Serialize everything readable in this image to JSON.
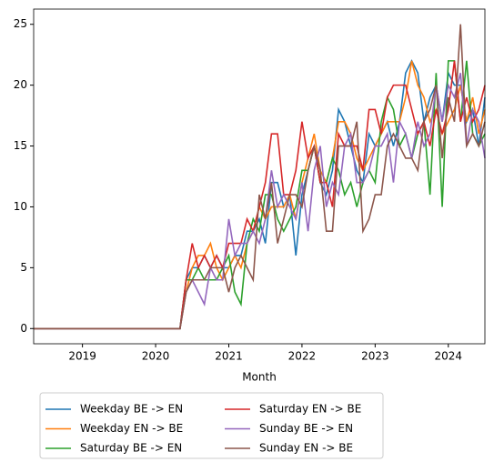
{
  "chart_data": {
    "type": "line",
    "x_label": "Month",
    "x": [
      "2018-05",
      "2018-06",
      "2018-07",
      "2018-08",
      "2018-09",
      "2018-10",
      "2018-11",
      "2018-12",
      "2019-01",
      "2019-02",
      "2019-03",
      "2019-04",
      "2019-05",
      "2019-06",
      "2019-07",
      "2019-08",
      "2019-09",
      "2019-10",
      "2019-11",
      "2019-12",
      "2020-01",
      "2020-02",
      "2020-03",
      "2020-04",
      "2020-05",
      "2020-06",
      "2020-07",
      "2020-08",
      "2020-09",
      "2020-10",
      "2020-11",
      "2020-12",
      "2021-01",
      "2021-02",
      "2021-03",
      "2021-04",
      "2021-05",
      "2021-06",
      "2021-07",
      "2021-08",
      "2021-09",
      "2021-10",
      "2021-11",
      "2021-12",
      "2022-01",
      "2022-02",
      "2022-03",
      "2022-04",
      "2022-05",
      "2022-06",
      "2022-07",
      "2022-08",
      "2022-09",
      "2022-10",
      "2022-11",
      "2022-12",
      "2023-01",
      "2023-02",
      "2023-03",
      "2023-04",
      "2023-05",
      "2023-06",
      "2023-07",
      "2023-08",
      "2023-09",
      "2023-10",
      "2023-11",
      "2023-12",
      "2024-01",
      "2024-02",
      "2024-03",
      "2024-04",
      "2024-05",
      "2024-06",
      "2024-07"
    ],
    "xlim": [
      "2018-05",
      "2024-07"
    ],
    "xticks": [
      {
        "value": "2019-01",
        "label": "2019"
      },
      {
        "value": "2020-01",
        "label": "2020"
      },
      {
        "value": "2021-01",
        "label": "2021"
      },
      {
        "value": "2022-01",
        "label": "2022"
      },
      {
        "value": "2023-01",
        "label": "2023"
      },
      {
        "value": "2024-01",
        "label": "2024"
      }
    ],
    "ylim": [
      -1.25,
      26.25
    ],
    "yticks": [
      0,
      5,
      10,
      15,
      20,
      25
    ],
    "grid": false,
    "series": [
      {
        "name": "Weekday BE -> EN",
        "color": "#1f77b4",
        "values": [
          0,
          0,
          0,
          0,
          0,
          0,
          0,
          0,
          0,
          0,
          0,
          0,
          0,
          0,
          0,
          0,
          0,
          0,
          0,
          0,
          0,
          0,
          0,
          0,
          0,
          4,
          5,
          5,
          6,
          5,
          6,
          5,
          5,
          6,
          6,
          8,
          8,
          9,
          7,
          12,
          12,
          10,
          11,
          6,
          11,
          13,
          15,
          12,
          11,
          13,
          18,
          17,
          15,
          13,
          12,
          16,
          15,
          16,
          17,
          15,
          17,
          21,
          22,
          21,
          17,
          19,
          20,
          17,
          21,
          20,
          20,
          17,
          18,
          15,
          19
        ]
      },
      {
        "name": "Weekday EN -> BE",
        "color": "#ff7f0e",
        "values": [
          0,
          0,
          0,
          0,
          0,
          0,
          0,
          0,
          0,
          0,
          0,
          0,
          0,
          0,
          0,
          0,
          0,
          0,
          0,
          0,
          0,
          0,
          0,
          0,
          0,
          3,
          5,
          6,
          6,
          7,
          5,
          4,
          5,
          6,
          5,
          7,
          8,
          10,
          9,
          10,
          10,
          10,
          11,
          9,
          12,
          14,
          16,
          13,
          12,
          14,
          17,
          17,
          16,
          14,
          13,
          14,
          15,
          16,
          17,
          17,
          17,
          19,
          22,
          20,
          19,
          17,
          18,
          16,
          17,
          18,
          20,
          17,
          19,
          16,
          18
        ]
      },
      {
        "name": "Saturday BE -> EN",
        "color": "#2ca02c",
        "values": [
          0,
          0,
          0,
          0,
          0,
          0,
          0,
          0,
          0,
          0,
          0,
          0,
          0,
          0,
          0,
          0,
          0,
          0,
          0,
          0,
          0,
          0,
          0,
          0,
          0,
          4,
          4,
          5,
          4,
          4,
          4,
          5,
          6,
          3,
          2,
          7,
          9,
          8,
          11,
          11,
          9,
          8,
          9,
          10,
          13,
          13,
          15,
          12,
          12,
          14,
          13,
          11,
          12,
          10,
          12,
          13,
          12,
          17,
          19,
          18,
          15,
          16,
          14,
          16,
          17,
          11,
          21,
          10,
          22,
          22,
          17,
          22,
          16,
          15,
          16
        ]
      },
      {
        "name": "Saturday EN -> BE",
        "color": "#d62728",
        "values": [
          0,
          0,
          0,
          0,
          0,
          0,
          0,
          0,
          0,
          0,
          0,
          0,
          0,
          0,
          0,
          0,
          0,
          0,
          0,
          0,
          0,
          0,
          0,
          0,
          0,
          4,
          7,
          5,
          6,
          5,
          6,
          5,
          7,
          7,
          7,
          9,
          8,
          10,
          12,
          16,
          16,
          11,
          11,
          13,
          17,
          14,
          15,
          12,
          12,
          10,
          16,
          15,
          15,
          15,
          13,
          18,
          18,
          16,
          19,
          20,
          20,
          20,
          18,
          16,
          17,
          15,
          18,
          16,
          18,
          22,
          17,
          19,
          17,
          18,
          20
        ]
      },
      {
        "name": "Sunday BE -> EN",
        "color": "#9467bd",
        "values": [
          0,
          0,
          0,
          0,
          0,
          0,
          0,
          0,
          0,
          0,
          0,
          0,
          0,
          0,
          0,
          0,
          0,
          0,
          0,
          0,
          0,
          0,
          0,
          0,
          0,
          3,
          4,
          3,
          2,
          5,
          4,
          4,
          9,
          6,
          7,
          7,
          8,
          7,
          9,
          13,
          10,
          11,
          10,
          9,
          12,
          8,
          13,
          15,
          10,
          12,
          11,
          15,
          16,
          12,
          12,
          13,
          15,
          15,
          16,
          12,
          17,
          16,
          14,
          17,
          15,
          16,
          20,
          17,
          20,
          19,
          21,
          15,
          18,
          17,
          14
        ]
      },
      {
        "name": "Sunday EN -> BE",
        "color": "#8c564b",
        "values": [
          0,
          0,
          0,
          0,
          0,
          0,
          0,
          0,
          0,
          0,
          0,
          0,
          0,
          0,
          0,
          0,
          0,
          0,
          0,
          0,
          0,
          0,
          0,
          0,
          0,
          3,
          4,
          4,
          4,
          5,
          5,
          5,
          3,
          5,
          6,
          5,
          4,
          11,
          9,
          12,
          7,
          9,
          11,
          11,
          10,
          13,
          15,
          13,
          8,
          8,
          15,
          15,
          15,
          17,
          8,
          9,
          11,
          11,
          15,
          16,
          15,
          14,
          14,
          13,
          17,
          18,
          20,
          14,
          19,
          17,
          25,
          15,
          16,
          15,
          17
        ]
      }
    ]
  }
}
